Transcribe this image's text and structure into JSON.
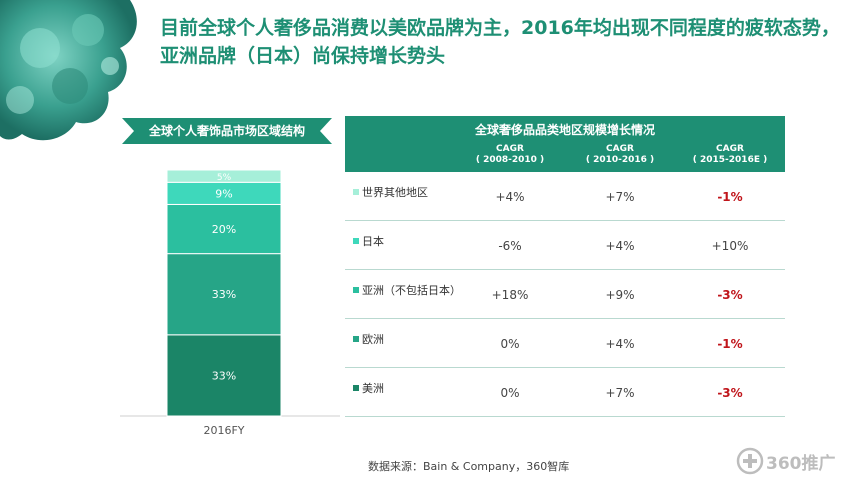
{
  "headline": "目前全球个人奢侈品消费以美欧品牌为主，2016年均出现不同程度的疲软态势，亚洲品牌（日本）尚保持增长势头",
  "left_banner": "全球个人奢饰品市场区域结构",
  "colors": {
    "accent": "#1e8f74",
    "negative": "#c0151b",
    "seg_other": "#a6efd9",
    "seg_japan": "#3ed8bb",
    "seg_asia": "#2bbf9f",
    "seg_europe": "#26a587",
    "seg_america": "#1b8567"
  },
  "chart_data": [
    {
      "type": "bar",
      "stacked": true,
      "categories": [
        "2016FY"
      ],
      "series": [
        {
          "name": "美洲",
          "values": [
            33
          ],
          "label": "33%"
        },
        {
          "name": "欧洲",
          "values": [
            33
          ],
          "label": "33%"
        },
        {
          "name": "亚洲（不包括日本）",
          "values": [
            20
          ],
          "label": "20%"
        },
        {
          "name": "日本",
          "values": [
            9
          ],
          "label": "9%"
        },
        {
          "name": "世界其他地区",
          "values": [
            5
          ],
          "label": "5%"
        }
      ],
      "ylim": [
        0,
        100
      ]
    },
    {
      "type": "table",
      "title": "全球奢侈品品类地区规模增长情况",
      "columns": [
        {
          "name": "CAGR",
          "period": "( 2008-2010 )"
        },
        {
          "name": "CAGR",
          "period": "( 2010-2016 )"
        },
        {
          "name": "CAGR",
          "period": "( 2015-2016E )"
        }
      ],
      "rows": [
        {
          "region": "世界其他地区",
          "values": [
            "+4%",
            "+7%",
            "-1%"
          ]
        },
        {
          "region": "日本",
          "values": [
            "-6%",
            "+4%",
            "+10%"
          ]
        },
        {
          "region": "亚洲（不包括日本）",
          "values": [
            "+18%",
            "+9%",
            "-3%"
          ]
        },
        {
          "region": "欧洲",
          "values": [
            "0%",
            "+4%",
            "-1%"
          ]
        },
        {
          "region": "美洲",
          "values": [
            "0%",
            "+7%",
            "-3%"
          ]
        }
      ]
    }
  ],
  "source": "数据来源：Bain & Company，360智库",
  "logo": "360推广"
}
